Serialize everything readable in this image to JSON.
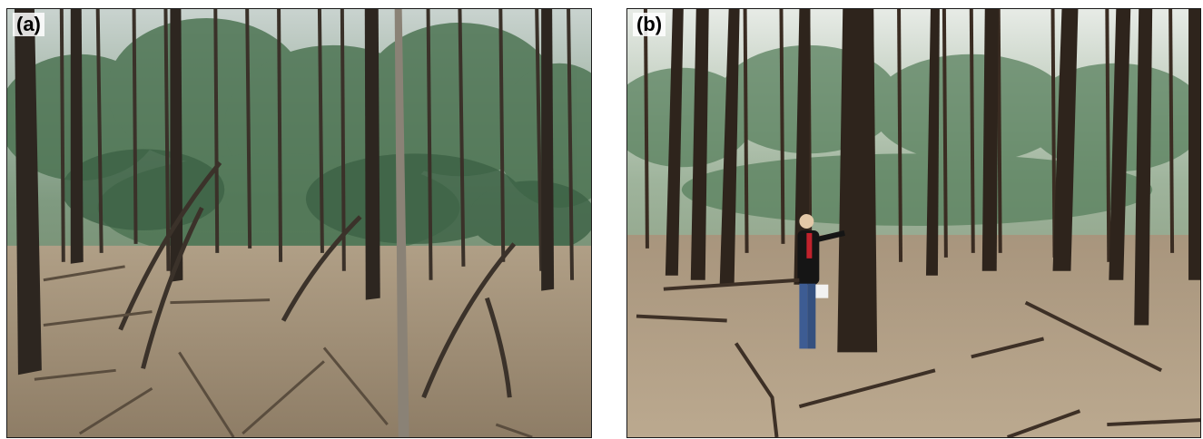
{
  "figure": {
    "panels": [
      {
        "id": "a",
        "label": "(a)"
      },
      {
        "id": "b",
        "label": "(b)"
      }
    ]
  }
}
